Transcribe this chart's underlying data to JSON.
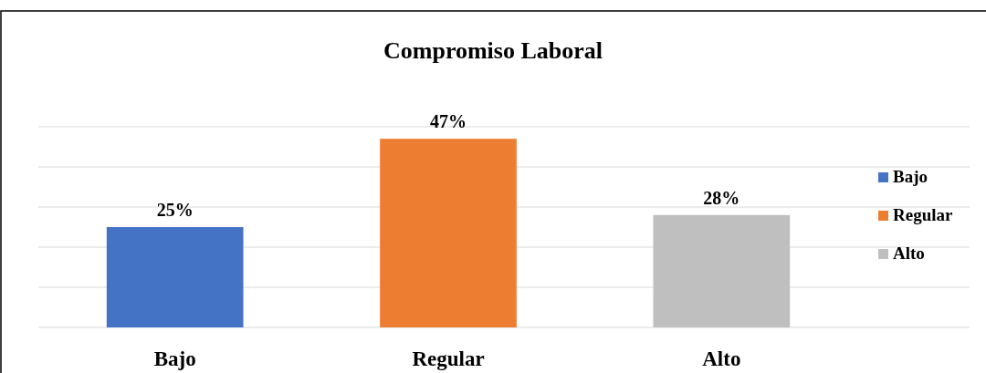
{
  "chart_data": {
    "type": "bar",
    "title": "Compromiso Laboral",
    "categories": [
      "Bajo",
      "Regular",
      "Alto"
    ],
    "stacked": true,
    "series": [
      {
        "name": "Bajo",
        "color": "#4472c4",
        "values": [
          25,
          null,
          null
        ],
        "value_labels": [
          "25%",
          null,
          null
        ]
      },
      {
        "name": "Regular",
        "color": "#ed7d31",
        "values": [
          null,
          47,
          null
        ],
        "value_labels": [
          null,
          "47%",
          null
        ]
      },
      {
        "name": "Alto",
        "color": "#bfbfbf",
        "values": [
          null,
          null,
          28
        ],
        "value_labels": [
          null,
          null,
          "28%"
        ]
      }
    ],
    "ylim": [
      0,
      50
    ],
    "yticks": [
      {
        "value": 0,
        "label": null
      },
      {
        "value": 10,
        "label": null
      },
      {
        "value": 20,
        "label": null
      },
      {
        "value": 30,
        "label": null
      },
      {
        "value": 40,
        "label": null
      },
      {
        "value": 50,
        "label": null
      }
    ],
    "grid": "y",
    "legend": "right"
  }
}
